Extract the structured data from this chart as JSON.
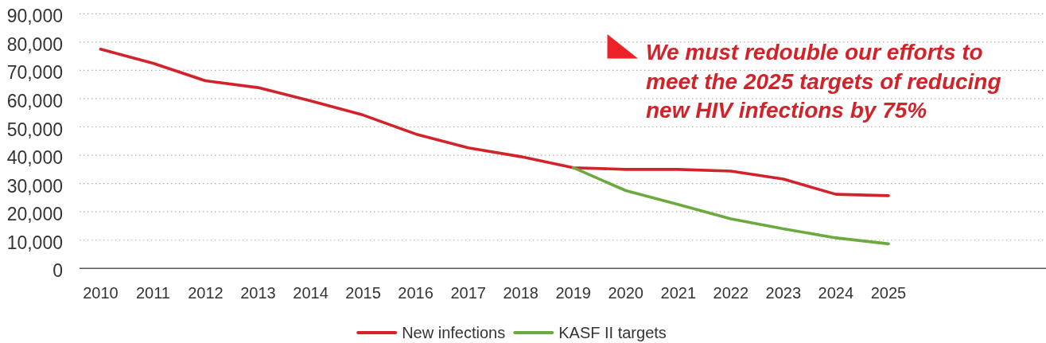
{
  "chart_data": {
    "type": "line",
    "x": [
      2010,
      2011,
      2012,
      2013,
      2014,
      2015,
      2016,
      2017,
      2018,
      2019,
      2020,
      2021,
      2022,
      2023,
      2024,
      2025
    ],
    "series": [
      {
        "name": "New infections",
        "color": "#d2232a",
        "values": [
          77500,
          72500,
          66300,
          63900,
          59200,
          54200,
          47500,
          42600,
          39500,
          35600,
          35000,
          35000,
          34400,
          31600,
          26200,
          25700
        ]
      },
      {
        "name": "KASF II targets",
        "color": "#6aaa3e",
        "values": [
          null,
          null,
          null,
          null,
          null,
          null,
          null,
          null,
          null,
          35600,
          27500,
          22600,
          17500,
          14000,
          10800,
          8700
        ]
      }
    ],
    "xlim": [
      2009.6,
      2028
    ],
    "xticks": [
      2010,
      2011,
      2012,
      2013,
      2014,
      2015,
      2016,
      2017,
      2018,
      2019,
      2020,
      2021,
      2022,
      2023,
      2024,
      2025
    ],
    "ylim": [
      0,
      90000
    ],
    "yticks": [
      0,
      {
        "value": 10000,
        "label": "10,000"
      },
      {
        "value": 20000,
        "label": "20,000"
      },
      {
        "value": 30000,
        "label": "30,000"
      },
      {
        "value": 40000,
        "label": "40,000"
      },
      {
        "value": 50000,
        "label": "50,000"
      },
      {
        "value": 60000,
        "label": "60,000"
      },
      {
        "value": 70000,
        "label": "70,000"
      },
      {
        "value": 80000,
        "label": "80,000"
      },
      {
        "value": 90000,
        "label": "90,000"
      }
    ],
    "grid": "y",
    "legend": "bottom",
    "annotations": [
      "We must redouble our efforts to meet the 2025 targets of reducing new HIV infections by 75%"
    ]
  }
}
